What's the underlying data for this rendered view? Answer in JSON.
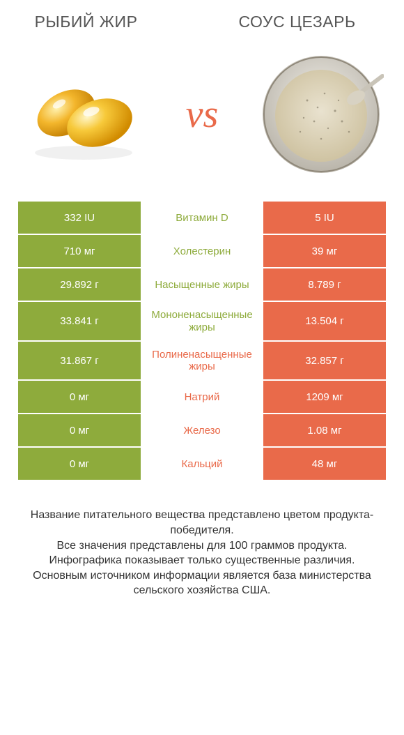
{
  "colors": {
    "left_bg": "#8eab3c",
    "right_bg": "#e96a4a",
    "text_dark": "#555555"
  },
  "header": {
    "left_title": "РЫБИЙ ЖИР",
    "right_title": "СОУС ЦЕЗАРЬ",
    "vs": "vs"
  },
  "comparison": {
    "type": "table",
    "rows": [
      {
        "left": "332 IU",
        "label": "Витамин D",
        "right": "5 IU",
        "winner": "left"
      },
      {
        "left": "710 мг",
        "label": "Холестерин",
        "right": "39 мг",
        "winner": "left"
      },
      {
        "left": "29.892 г",
        "label": "Насыщенные жиры",
        "right": "8.789 г",
        "winner": "left"
      },
      {
        "left": "33.841 г",
        "label": "Мононенасыщенные жиры",
        "right": "13.504 г",
        "winner": "left"
      },
      {
        "left": "31.867 г",
        "label": "Полиненасыщенные жиры",
        "right": "32.857 г",
        "winner": "right"
      },
      {
        "left": "0 мг",
        "label": "Натрий",
        "right": "1209 мг",
        "winner": "right"
      },
      {
        "left": "0 мг",
        "label": "Железо",
        "right": "1.08 мг",
        "winner": "right"
      },
      {
        "left": "0 мг",
        "label": "Кальций",
        "right": "48 мг",
        "winner": "right"
      }
    ]
  },
  "footer": {
    "line1": "Название питательного вещества представлено цветом продукта-победителя.",
    "line2": "Все значения представлены для 100 граммов продукта.",
    "line3": "Инфографика показывает только существенные различия.",
    "line4": "Основным источником информации является база министерства сельского хозяйства США."
  }
}
